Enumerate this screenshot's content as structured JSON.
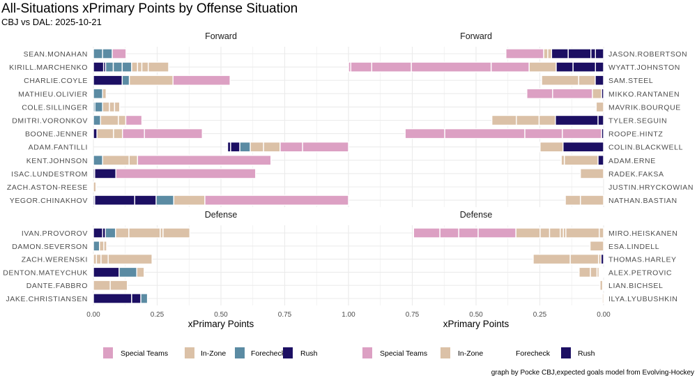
{
  "chart_data": {
    "type": "bar",
    "orientation": "horizontal-stacked",
    "title": "All-Situations xPrimary Points by Offense Situation",
    "subtitle": "CBJ vs DAL: 2025-10-21",
    "xlabel": "xPrimary Points",
    "caption": "graph by Pocke CBJ,expected goals model from Evolving-Hockey",
    "xlim": [
      0,
      1
    ],
    "ticks": [
      "0.00",
      "0.25",
      "0.50",
      "0.75",
      "1.00"
    ],
    "tick_values": [
      0,
      0.25,
      0.5,
      0.75,
      1.0
    ],
    "categories": [
      "Special Teams",
      "In-Zone",
      "Forecheck",
      "Rush"
    ],
    "colors": {
      "left": {
        "Special Teams": "#dca0c3",
        "In-Zone": "#dbc1a7",
        "Forecheck": "#5b8ba3",
        "Rush": "#1c0f63"
      },
      "right": {
        "Special Teams": "#dca0c3",
        "In-Zone": "#dbc1a7",
        "Forecheck": "#ffffff",
        "Rush": "#1c0f63"
      }
    },
    "legends": [
      {
        "side": "left",
        "items": [
          "Special Teams",
          "In-Zone",
          "Forecheck",
          "Rush"
        ]
      },
      {
        "side": "right",
        "items": [
          "Special Teams",
          "In-Zone",
          "Forecheck",
          "Rush"
        ]
      }
    ],
    "panels": [
      {
        "facet": "Forward",
        "side": "left",
        "group": "top",
        "players": [
          {
            "name": "SEAN.MONAHAN",
            "segments": [
              [
                "Forecheck",
                0.036
              ],
              [
                "Forecheck",
                0.038
              ],
              [
                "Special Teams",
                0.054
              ]
            ]
          },
          {
            "name": "KIRILL.MARCHENKO",
            "segments": [
              [
                "Rush",
                0.04
              ],
              [
                "Rush",
                0.008
              ],
              [
                "Forecheck",
                0.03
              ],
              [
                "Forecheck",
                0.035
              ],
              [
                "Forecheck",
                0.037
              ],
              [
                "In-Zone",
                0.023
              ],
              [
                "In-Zone",
                0.017
              ],
              [
                "In-Zone",
                0.025
              ],
              [
                "In-Zone",
                0.08
              ]
            ]
          },
          {
            "name": "CHARLIE.COYLE",
            "segments": [
              [
                "Rush",
                0.113
              ],
              [
                "Forecheck",
                0.028
              ],
              [
                "In-Zone",
                0.171
              ],
              [
                "Special Teams",
                0.224
              ]
            ]
          },
          {
            "name": "MATHIEU.OLIVIER",
            "segments": [
              [
                "Forecheck",
                0.036
              ],
              [
                "In-Zone",
                0.014
              ]
            ]
          },
          {
            "name": "COLE.SILLINGER",
            "segments": [
              [
                "Forecheck",
                0.006
              ],
              [
                "Forecheck",
                0.03
              ],
              [
                "In-Zone",
                0.027
              ],
              [
                "In-Zone",
                0.02
              ],
              [
                "In-Zone",
                0.02
              ]
            ]
          },
          {
            "name": "DMITRI.VORONKOV",
            "segments": [
              [
                "Forecheck",
                0.028
              ],
              [
                "In-Zone",
                0.07
              ],
              [
                "In-Zone",
                0.029
              ],
              [
                "Special Teams",
                0.063
              ]
            ]
          },
          {
            "name": "BOONE.JENNER",
            "segments": [
              [
                "Rush",
                0.014
              ],
              [
                "In-Zone",
                0.065
              ],
              [
                "In-Zone",
                0.035
              ],
              [
                "Special Teams",
                0.086
              ],
              [
                "Special Teams",
                0.227
              ]
            ]
          },
          {
            "name": "ADAM.FANTILLI",
            "start": 0.526,
            "segments": [
              [
                "Rush",
                0.012
              ],
              [
                "Rush",
                0.036
              ],
              [
                "Forecheck",
                0.041
              ],
              [
                "In-Zone",
                0.052
              ],
              [
                "In-Zone",
                0.065
              ],
              [
                "Special Teams",
                0.088
              ],
              [
                "Special Teams",
                0.18
              ]
            ]
          },
          {
            "name": "KENT.JOHNSON",
            "segments": [
              [
                "Forecheck",
                0.036
              ],
              [
                "In-Zone",
                0.104
              ],
              [
                "In-Zone",
                0.033
              ],
              [
                "Special Teams",
                0.523
              ]
            ]
          },
          {
            "name": "ISAC.LUNDESTROM",
            "segments": [
              [
                "Rush",
                0.005
              ],
              [
                "Rush",
                0.083
              ],
              [
                "Special Teams",
                0.548
              ]
            ]
          },
          {
            "name": "ZACH.ASTON-REESE",
            "segments": [
              [
                "In-Zone",
                0.01
              ]
            ]
          },
          {
            "name": "YEGOR.CHINAKHOV",
            "segments": [
              [
                "Rush",
                0.005
              ],
              [
                "Rush",
                0.157
              ],
              [
                "Rush",
                0.084
              ],
              [
                "Forecheck",
                0.069
              ],
              [
                "In-Zone",
                0.122
              ],
              [
                "Special Teams",
                0.563
              ]
            ]
          }
        ]
      },
      {
        "facet": "Forward",
        "side": "right",
        "group": "top",
        "players": [
          {
            "name": "JASON.ROBERTSON",
            "segments": [
              [
                "Rush",
                0.032
              ],
              [
                "Rush",
                0.018
              ],
              [
                "Rush",
                0.089
              ],
              [
                "Rush",
                0.065
              ],
              [
                "In-Zone",
                0.015
              ],
              [
                "In-Zone",
                0.016
              ],
              [
                "Special Teams",
                0.148
              ]
            ]
          },
          {
            "name": "WYATT.JOHNSTON",
            "segments": [
              [
                "Rush",
                0.032
              ],
              [
                "Rush",
                0.088
              ],
              [
                "Rush",
                0.066
              ],
              [
                "In-Zone",
                0.106
              ],
              [
                "Special Teams",
                0.149
              ],
              [
                "Special Teams",
                0.313
              ],
              [
                "Special Teams",
                0.155
              ],
              [
                "Special Teams",
                0.082
              ],
              [
                "Special Teams",
                0.009
              ]
            ]
          },
          {
            "name": "SAM.STEEL",
            "segments": [
              [
                "Rush",
                0.033
              ],
              [
                "In-Zone",
                0.065
              ],
              [
                "In-Zone",
                0.145
              ]
            ]
          },
          {
            "name": "MIKKO.RANTANEN",
            "segments": [
              [
                "Rush",
                0.008
              ],
              [
                "In-Zone",
                0.036
              ],
              [
                "Special Teams",
                0.156
              ],
              [
                "Special Teams",
                0.101
              ]
            ]
          },
          {
            "name": "MAVRIK.BOURQUE",
            "segments": [
              [
                "In-Zone",
                0.029
              ]
            ]
          },
          {
            "name": "TYLER.SEGUIN",
            "segments": [
              [
                "Rush",
                0.022
              ],
              [
                "Rush",
                0.167
              ],
              [
                "In-Zone",
                0.064
              ],
              [
                "In-Zone",
                0.089
              ],
              [
                "In-Zone",
                0.096
              ]
            ]
          },
          {
            "name": "ROOPE.HINTZ",
            "segments": [
              [
                "Rush",
                0.008
              ],
              [
                "Special Teams",
                0.154
              ],
              [
                "Special Teams",
                0.147
              ],
              [
                "Special Teams",
                0.314
              ],
              [
                "Special Teams",
                0.155
              ]
            ]
          },
          {
            "name": "COLIN.BLACKWELL",
            "segments": [
              [
                "Rush",
                0.159
              ],
              [
                "In-Zone",
                0.09
              ]
            ]
          },
          {
            "name": "ADAM.ERNE",
            "segments": [
              [
                "Rush",
                0.022
              ],
              [
                "In-Zone",
                0.132
              ],
              [
                "In-Zone",
                0.012
              ]
            ]
          },
          {
            "name": "RADEK.FAKSA",
            "segments": [
              [
                "In-Zone",
                0.091
              ]
            ]
          },
          {
            "name": "JUSTIN.HRYCKOWIAN",
            "segments": []
          },
          {
            "name": "NATHAN.BASTIAN",
            "segments": [
              [
                "In-Zone",
                0.091
              ],
              [
                "In-Zone",
                0.059
              ]
            ]
          }
        ]
      },
      {
        "facet": "Defense",
        "side": "left",
        "group": "bottom",
        "players": [
          {
            "name": "IVAN.PROVOROV",
            "segments": [
              [
                "Rush",
                0.036
              ],
              [
                "Rush",
                0.011
              ],
              [
                "Forecheck",
                0.04
              ],
              [
                "In-Zone",
                0.052
              ],
              [
                "In-Zone",
                0.123
              ],
              [
                "In-Zone",
                0.011
              ],
              [
                "In-Zone",
                0.105
              ]
            ]
          },
          {
            "name": "DAMON.SEVERSON",
            "segments": [
              [
                "Forecheck",
                0.024
              ],
              [
                "In-Zone",
                0.017
              ],
              [
                "In-Zone",
                0.011
              ]
            ]
          },
          {
            "name": "ZACH.WERENSKI",
            "segments": [
              [
                "In-Zone",
                0.012
              ],
              [
                "In-Zone",
                0.018
              ],
              [
                "In-Zone",
                0.028
              ],
              [
                "In-Zone",
                0.172
              ]
            ]
          },
          {
            "name": "DENTON.MATEYCHUK",
            "segments": [
              [
                "Rush",
                0.101
              ],
              [
                "Forecheck",
                0.069
              ],
              [
                "In-Zone",
                0.029
              ]
            ]
          },
          {
            "name": "DANTE.FABBRO",
            "segments": [
              [
                "In-Zone",
                0.066
              ],
              [
                "In-Zone",
                0.067
              ]
            ]
          },
          {
            "name": "JAKE.CHRISTIANSEN",
            "segments": [
              [
                "Rush",
                0.15
              ],
              [
                "Rush",
                0.036
              ],
              [
                "Forecheck",
                0.026
              ]
            ]
          }
        ]
      },
      {
        "facet": "Defense",
        "side": "right",
        "group": "bottom",
        "players": [
          {
            "name": "MIRO.HEISKANEN",
            "segments": [
              [
                "In-Zone",
                0.017
              ],
              [
                "In-Zone",
                0.131
              ],
              [
                "In-Zone",
                0.01
              ],
              [
                "In-Zone",
                0.012
              ],
              [
                "In-Zone",
                0.042
              ],
              [
                "In-Zone",
                0.037
              ],
              [
                "In-Zone",
                0.095
              ],
              [
                "Special Teams",
                0.148
              ],
              [
                "Special Teams",
                0.076
              ],
              [
                "Special Teams",
                0.074
              ],
              [
                "Special Teams",
                0.103
              ]
            ]
          },
          {
            "name": "ESA.LINDELL",
            "segments": [
              [
                "In-Zone",
                0.053
              ]
            ]
          },
          {
            "name": "THOMAS.HARLEY",
            "segments": [
              [
                "Rush",
                0.01
              ],
              [
                "In-Zone",
                0.01
              ],
              [
                "In-Zone",
                0.111
              ],
              [
                "In-Zone",
                0.145
              ]
            ]
          },
          {
            "name": "ALEX.PETROVIC",
            "segments": [
              [
                "Forecheck",
                0.018
              ],
              [
                "In-Zone",
                0.008
              ],
              [
                "In-Zone",
                0.026
              ],
              [
                "In-Zone",
                0.044
              ]
            ]
          },
          {
            "name": "LIAN.BICHSEL",
            "segments": [
              [
                "Forecheck",
                0.004
              ],
              [
                "In-Zone",
                0.01
              ]
            ]
          },
          {
            "name": "ILYA.LYUBUSHKIN",
            "segments": [
              [
                "In-Zone",
                0.005
              ]
            ]
          }
        ]
      }
    ]
  }
}
